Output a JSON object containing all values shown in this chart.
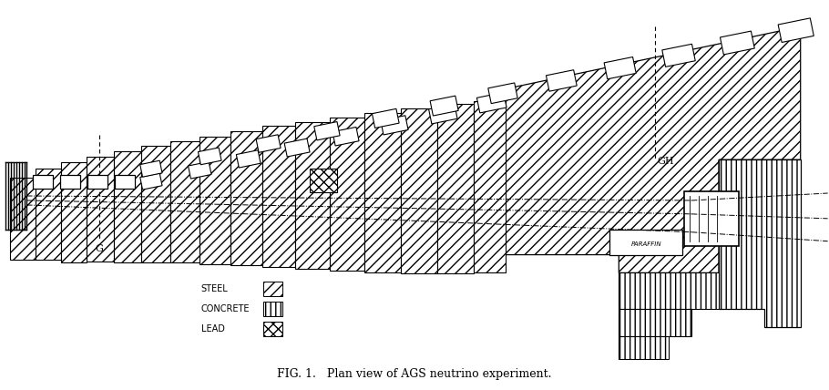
{
  "title": "FIG. 1.   Plan view of AGS neutrino experiment.",
  "title_fontsize": 9,
  "background_color": "#ffffff",
  "text_color": "#000000",
  "steel_hatch": "///",
  "concrete_hatch": "|||",
  "lead_hatch": "xxx",
  "legend_items": [
    {
      "label": "STEEL",
      "hatch": "///",
      "facecolor": "white",
      "edgecolor": "black"
    },
    {
      "label": "CONCRETE",
      "hatch": "|||",
      "facecolor": "white",
      "edgecolor": "black"
    },
    {
      "label": "LEAD",
      "hatch": "xxx",
      "facecolor": "white",
      "edgecolor": "black"
    }
  ],
  "label_G": "G",
  "label_GH": "GH",
  "label_PARAFFIN": "PARAFFIN",
  "figsize": [
    9.1,
    4.28
  ],
  "dpi": 100
}
